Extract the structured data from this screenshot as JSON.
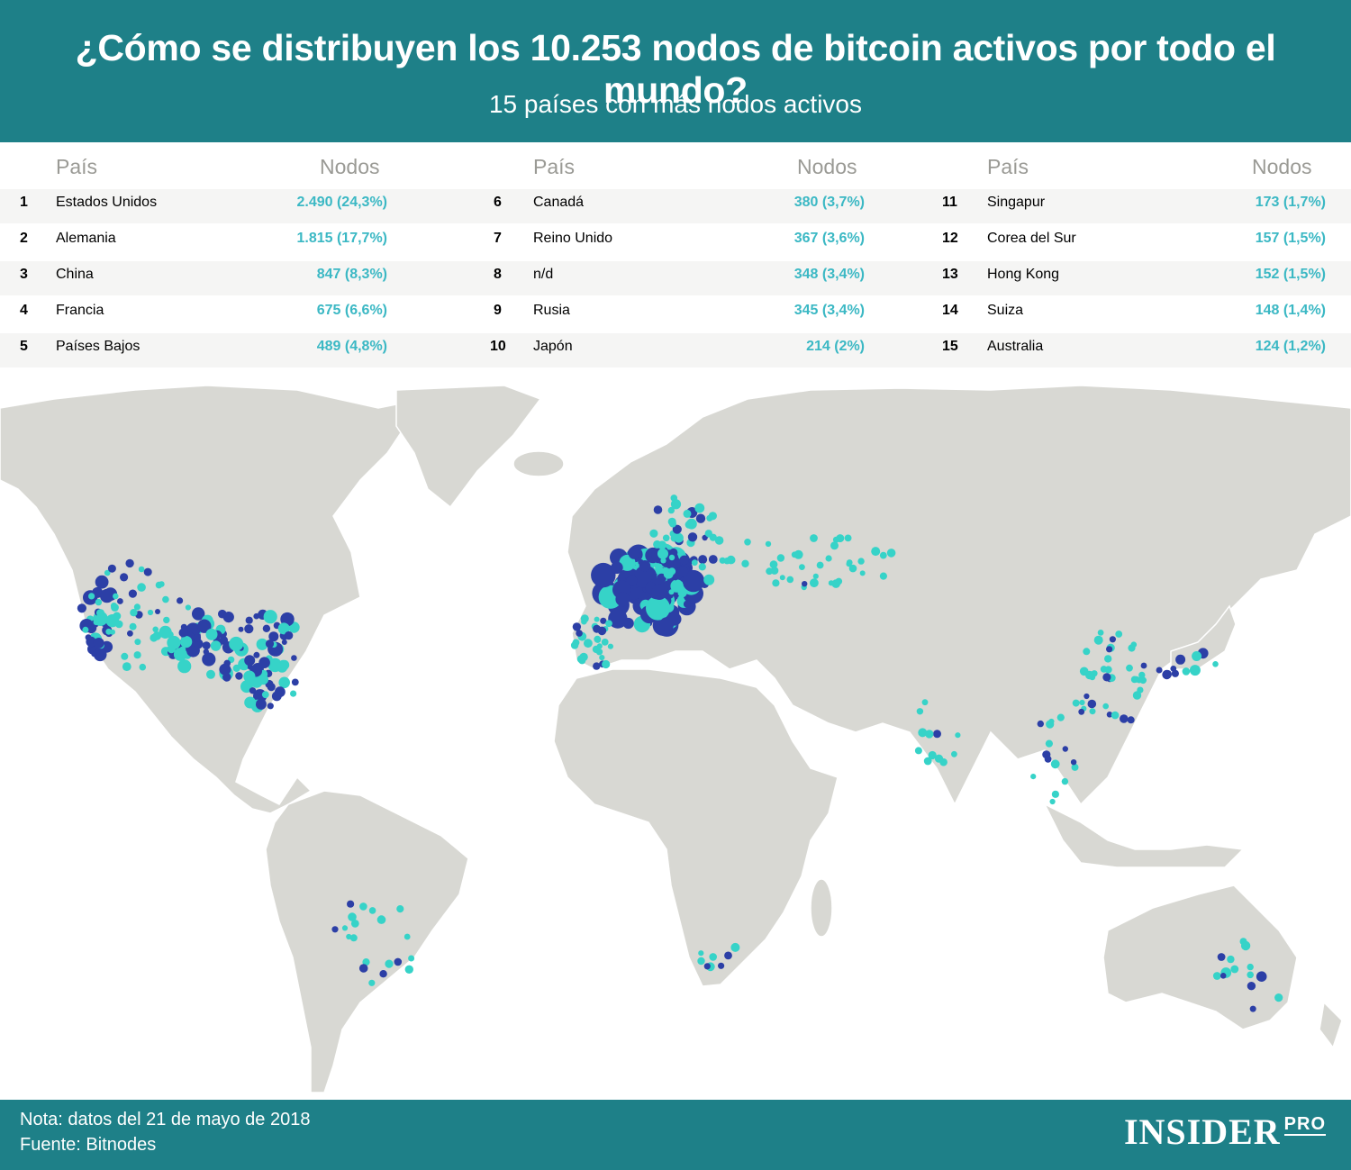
{
  "header": {
    "title": "¿Cómo se distribuyen los 10.253 nodos de bitcoin activos por todo el mundo?",
    "subtitle": "15 países con más nodos activos"
  },
  "table": {
    "col_country": "País",
    "col_nodes": "Nodos",
    "rows": [
      {
        "rank": "1",
        "country": "Estados Unidos",
        "nodes": "2.490 (24,3%)"
      },
      {
        "rank": "2",
        "country": "Alemania",
        "nodes": "1.815 (17,7%)"
      },
      {
        "rank": "3",
        "country": "China",
        "nodes": "847 (8,3%)"
      },
      {
        "rank": "4",
        "country": "Francia",
        "nodes": "675 (6,6%)"
      },
      {
        "rank": "5",
        "country": "Países Bajos",
        "nodes": "489 (4,8%)"
      },
      {
        "rank": "6",
        "country": "Canadá",
        "nodes": "380 (3,7%)"
      },
      {
        "rank": "7",
        "country": "Reino Unido",
        "nodes": "367 (3,6%)"
      },
      {
        "rank": "8",
        "country": "n/d",
        "nodes": "348 (3,4%)"
      },
      {
        "rank": "9",
        "country": "Rusia",
        "nodes": "345 (3,4%)"
      },
      {
        "rank": "10",
        "country": "Japón",
        "nodes": "214 (2%)"
      },
      {
        "rank": "11",
        "country": "Singapur",
        "nodes": "173 (1,7%)"
      },
      {
        "rank": "12",
        "country": "Corea del Sur",
        "nodes": "157 (1,5%)"
      },
      {
        "rank": "13",
        "country": "Hong Kong",
        "nodes": "152 (1,5%)"
      },
      {
        "rank": "14",
        "country": "Suiza",
        "nodes": "148 (1,4%)"
      },
      {
        "rank": "15",
        "country": "Australia",
        "nodes": "124 (1,2%)"
      }
    ]
  },
  "chart_data": {
    "type": "table",
    "title": "¿Cómo se distribuyen los 10.253 nodos de bitcoin activos por todo el mundo?",
    "subtitle": "15 países con más nodos activos",
    "columns": [
      "País",
      "Nodos"
    ],
    "categories": [
      "Estados Unidos",
      "Alemania",
      "China",
      "Francia",
      "Países Bajos",
      "Canadá",
      "Reino Unido",
      "n/d",
      "Rusia",
      "Japón",
      "Singapur",
      "Corea del Sur",
      "Hong Kong",
      "Suiza",
      "Australia"
    ],
    "values": [
      2490,
      1815,
      847,
      675,
      489,
      380,
      367,
      348,
      345,
      214,
      173,
      157,
      152,
      148,
      124
    ],
    "percentages": [
      24.3,
      17.7,
      8.3,
      6.6,
      4.8,
      3.7,
      3.6,
      3.4,
      3.4,
      2,
      1.7,
      1.5,
      1.5,
      1.4,
      1.2
    ],
    "total_nodes": 10253
  },
  "colors": {
    "header_bg": "#1e8088",
    "value_text": "#3bb8c4",
    "land": "#d8d8d3",
    "dot_light": "#36d3c8",
    "dot_dark": "#2c3fa6"
  },
  "footer": {
    "note": "Nota: datos del 21 de mayo de 2018",
    "source": "Fuente: Bitnodes",
    "brand": "INSIDER",
    "brand_suffix": "PRO"
  }
}
